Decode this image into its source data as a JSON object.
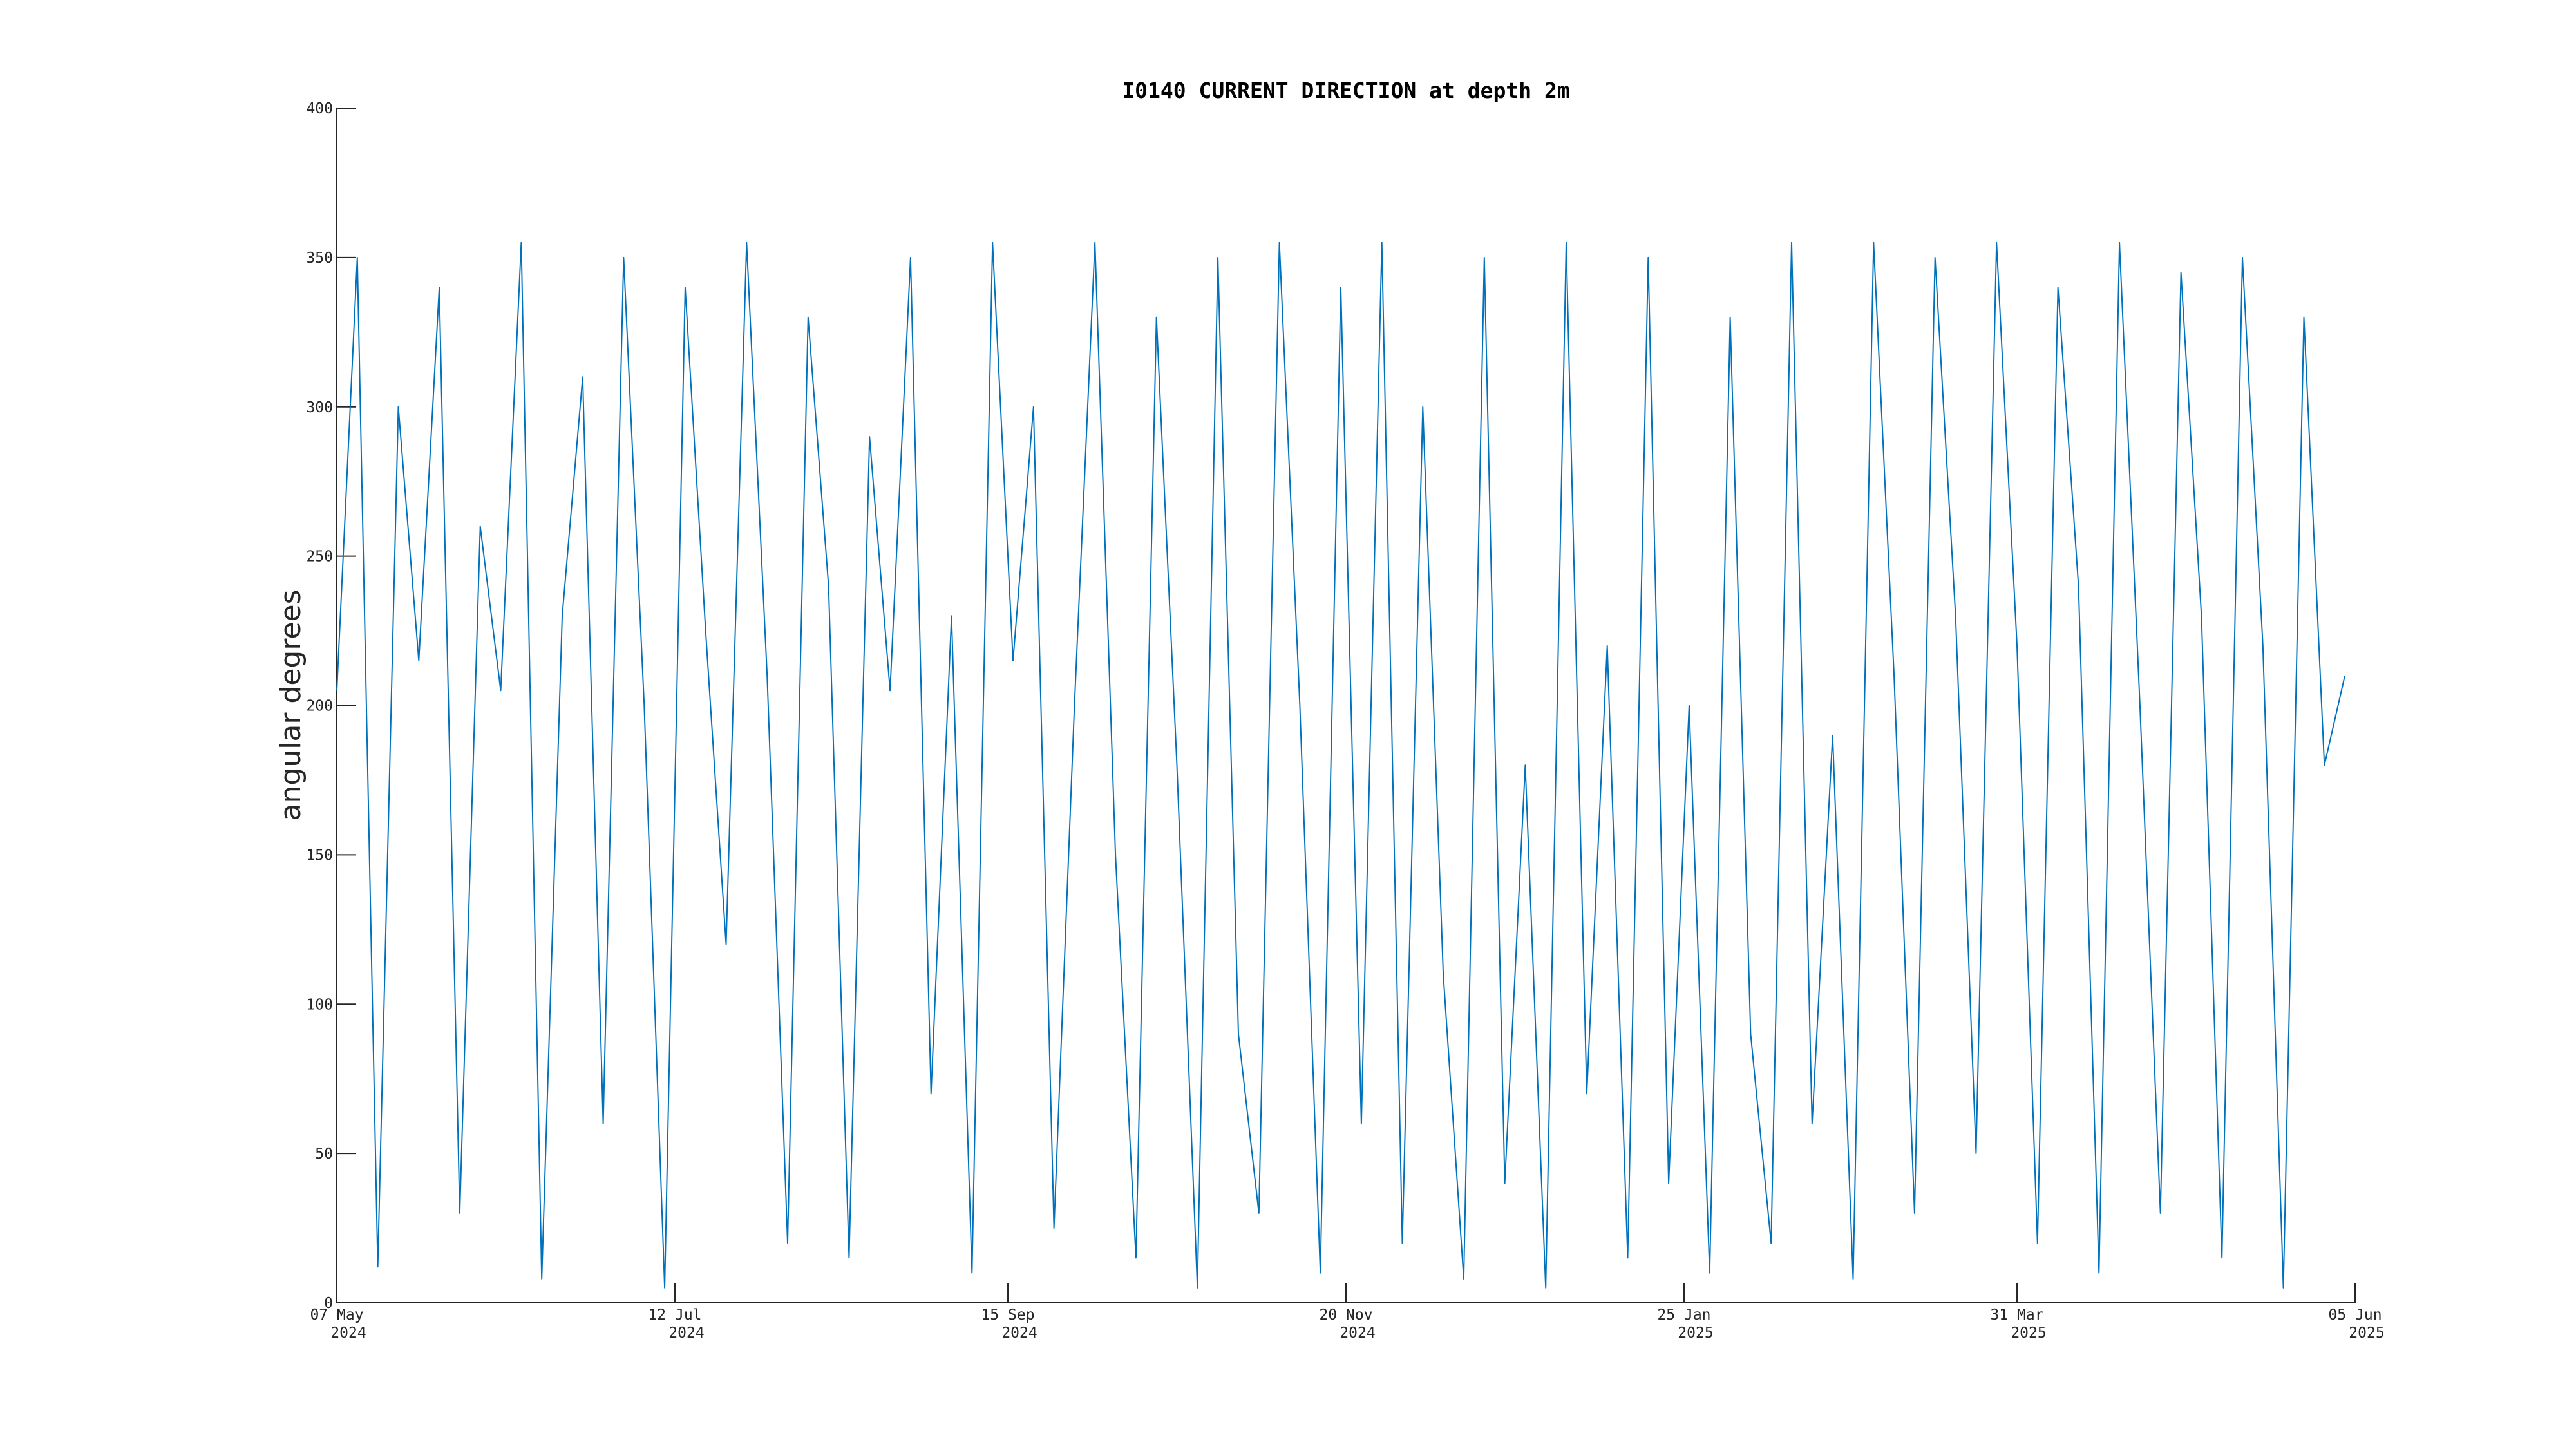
{
  "chart_data": {
    "type": "line",
    "title": "I0140 CURRENT DIRECTION at depth 2m",
    "y_label": "angular degrees",
    "xlim": [
      "2024-05-07",
      "2025-06-05"
    ],
    "xticks": [
      {
        "value": "2024-05-07",
        "label": [
          "07 May",
          "2024"
        ]
      },
      {
        "value": "2024-07-12",
        "label": [
          "12 Jul",
          "2024"
        ]
      },
      {
        "value": "2024-09-15",
        "label": [
          "15 Sep",
          "2024"
        ]
      },
      {
        "value": "2024-11-20",
        "label": [
          "20 Nov",
          "2024"
        ]
      },
      {
        "value": "2025-01-25",
        "label": [
          "25 Jan",
          "2025"
        ]
      },
      {
        "value": "2025-03-31",
        "label": [
          "31 Mar",
          "2025"
        ]
      },
      {
        "value": "2025-06-05",
        "label": [
          "05 Jun",
          "2025"
        ]
      }
    ],
    "ylim": [
      0,
      400
    ],
    "yticks": [
      0,
      50,
      100,
      150,
      200,
      250,
      300,
      350,
      400
    ],
    "grid": false,
    "x": [
      "2024-05-07",
      "2024-05-11",
      "2024-05-15",
      "2024-05-19",
      "2024-05-23",
      "2024-05-27",
      "2024-05-31",
      "2024-06-04",
      "2024-06-08",
      "2024-06-12",
      "2024-06-16",
      "2024-06-20",
      "2024-06-24",
      "2024-06-28",
      "2024-07-02",
      "2024-07-06",
      "2024-07-10",
      "2024-07-14",
      "2024-07-18",
      "2024-07-22",
      "2024-07-26",
      "2024-07-30",
      "2024-08-03",
      "2024-08-07",
      "2024-08-11",
      "2024-08-15",
      "2024-08-19",
      "2024-08-23",
      "2024-08-27",
      "2024-08-31",
      "2024-09-04",
      "2024-09-08",
      "2024-09-12",
      "2024-09-16",
      "2024-09-20",
      "2024-09-24",
      "2024-09-28",
      "2024-10-02",
      "2024-10-06",
      "2024-10-10",
      "2024-10-14",
      "2024-10-18",
      "2024-10-22",
      "2024-10-26",
      "2024-10-30",
      "2024-11-03",
      "2024-11-07",
      "2024-11-11",
      "2024-11-15",
      "2024-11-19",
      "2024-11-23",
      "2024-11-27",
      "2024-12-01",
      "2024-12-05",
      "2024-12-09",
      "2024-12-13",
      "2024-12-17",
      "2024-12-21",
      "2024-12-25",
      "2024-12-29",
      "2025-01-02",
      "2025-01-06",
      "2025-01-10",
      "2025-01-14",
      "2025-01-18",
      "2025-01-22",
      "2025-01-26",
      "2025-01-30",
      "2025-02-03",
      "2025-02-07",
      "2025-02-11",
      "2025-02-15",
      "2025-02-19",
      "2025-02-23",
      "2025-02-27",
      "2025-03-03",
      "2025-03-07",
      "2025-03-11",
      "2025-03-15",
      "2025-03-19",
      "2025-03-23",
      "2025-03-27",
      "2025-03-31",
      "2025-04-04",
      "2025-04-08",
      "2025-04-12",
      "2025-04-16",
      "2025-04-20",
      "2025-04-24",
      "2025-04-28",
      "2025-05-02",
      "2025-05-06",
      "2025-05-10",
      "2025-05-14",
      "2025-05-18",
      "2025-05-22",
      "2025-05-26",
      "2025-05-30",
      "2025-06-03"
    ],
    "series": [
      {
        "color": "#0072bd",
        "values": [
          205,
          350,
          12,
          300,
          215,
          340,
          30,
          260,
          205,
          355,
          8,
          230,
          310,
          60,
          350,
          200,
          5,
          340,
          225,
          120,
          355,
          210,
          20,
          330,
          240,
          15,
          290,
          205,
          350,
          70,
          230,
          10,
          355,
          215,
          300,
          25,
          200,
          355,
          150,
          15,
          330,
          180,
          5,
          350,
          90,
          30,
          355,
          200,
          10,
          340,
          60,
          355,
          20,
          300,
          110,
          8,
          350,
          40,
          180,
          5,
          355,
          70,
          220,
          15,
          350,
          40,
          200,
          10,
          330,
          90,
          20,
          355,
          60,
          190,
          8,
          355,
          210,
          30,
          350,
          230,
          50,
          355,
          220,
          20,
          340,
          240,
          10,
          355,
          200,
          30,
          345,
          230,
          15,
          350,
          220,
          5,
          330,
          180,
          210
        ]
      }
    ]
  }
}
